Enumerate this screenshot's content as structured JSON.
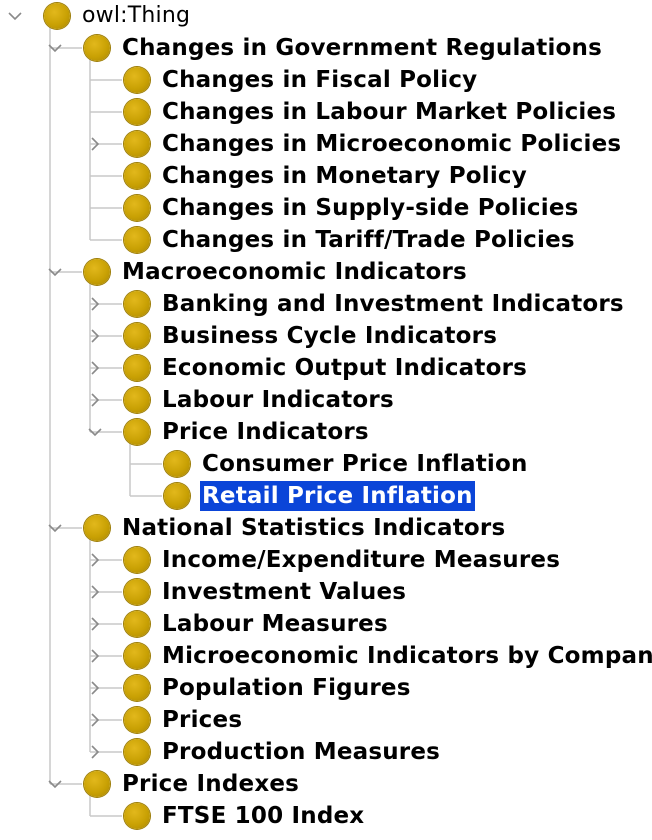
{
  "tree": {
    "root": {
      "label": "owl:Thing",
      "expanded": true,
      "children": [
        {
          "label": "Changes in Government Regulations",
          "expanded": true,
          "children": [
            {
              "label": "Changes in Fiscal Policy"
            },
            {
              "label": "Changes in Labour Market Policies"
            },
            {
              "label": "Changes in Microeconomic Policies",
              "expanded": false,
              "has_children": true
            },
            {
              "label": "Changes in Monetary Policy"
            },
            {
              "label": "Changes in Supply-side Policies"
            },
            {
              "label": "Changes in Tariff/Trade Policies"
            }
          ]
        },
        {
          "label": "Macroeconomic Indicators",
          "expanded": true,
          "children": [
            {
              "label": "Banking and Investment Indicators",
              "expanded": false,
              "has_children": true
            },
            {
              "label": "Business Cycle Indicators",
              "expanded": false,
              "has_children": true
            },
            {
              "label": "Economic Output Indicators",
              "expanded": false,
              "has_children": true
            },
            {
              "label": "Labour Indicators",
              "expanded": false,
              "has_children": true
            },
            {
              "label": "Price Indicators",
              "expanded": true,
              "children": [
                {
                  "label": "Consumer Price Inflation"
                },
                {
                  "label": "Retail Price Inflation",
                  "selected": true
                }
              ]
            }
          ]
        },
        {
          "label": "National Statistics Indicators",
          "expanded": true,
          "children": [
            {
              "label": "Income/Expenditure Measures",
              "expanded": false,
              "has_children": true
            },
            {
              "label": "Investment Values",
              "expanded": false,
              "has_children": true
            },
            {
              "label": "Labour Measures",
              "expanded": false,
              "has_children": true
            },
            {
              "label": "Microeconomic Indicators by Company",
              "expanded": false,
              "has_children": true
            },
            {
              "label": "Population Figures",
              "expanded": false,
              "has_children": true
            },
            {
              "label": "Prices",
              "expanded": false,
              "has_children": true
            },
            {
              "label": "Production Measures",
              "expanded": false,
              "has_children": true
            }
          ]
        },
        {
          "label": "Price Indexes",
          "expanded": true,
          "children": [
            {
              "label": "FTSE 100 Index"
            }
          ]
        }
      ]
    }
  },
  "colors": {
    "node_icon": "#c9a104",
    "selection_background": "#0b45d8",
    "selection_text": "#ffffff",
    "guide_line": "#c8c8c8",
    "toggle_arrow": "#8a8a8a"
  },
  "icons": {
    "node": "class-circle-icon",
    "expanded": "chevron-down-icon",
    "collapsed": "chevron-right-icon"
  }
}
